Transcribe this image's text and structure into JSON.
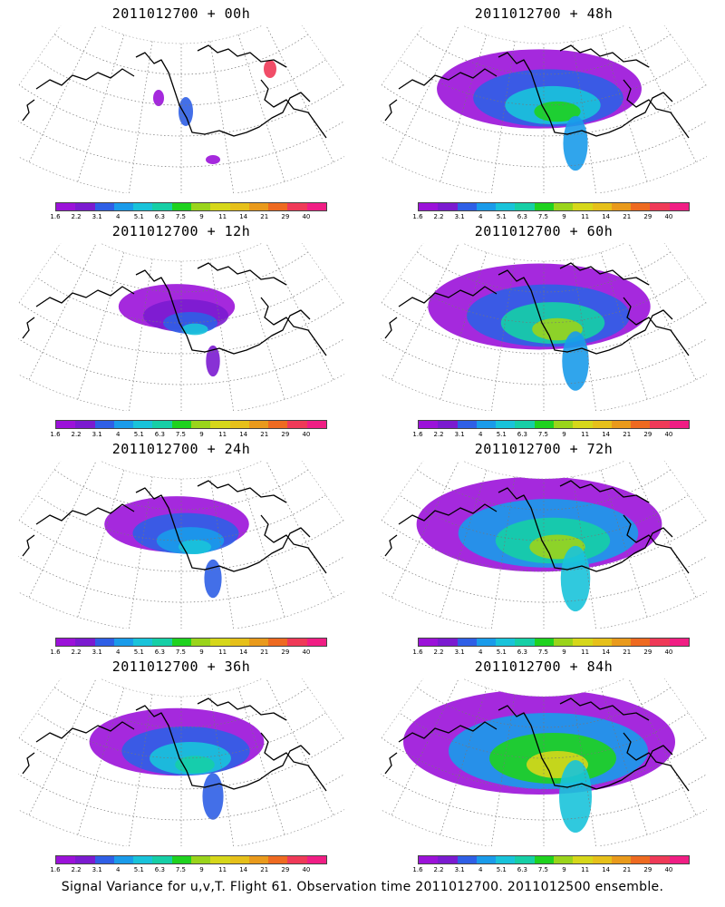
{
  "colorbar": {
    "colors": [
      "#9b12d9",
      "#7b1bd0",
      "#2f5fe6",
      "#1a9bea",
      "#19c3da",
      "#16cfa6",
      "#1fd21f",
      "#9ad41b",
      "#d6d71a",
      "#e6c01a",
      "#e99a1c",
      "#ee6a21",
      "#ef3a58",
      "#f01e84"
    ],
    "tick_labels": [
      "1.6",
      "2.2",
      "3.1",
      "4",
      "5.1",
      "6.3",
      "7.5",
      "9",
      "11",
      "14",
      "21",
      "29",
      "40"
    ]
  },
  "panels": [
    {
      "title": "2011012700 + 00h",
      "intensity": 0.0
    },
    {
      "title": "2011012700 + 48h",
      "intensity": 0.62
    },
    {
      "title": "2011012700 + 12h",
      "intensity": 0.12
    },
    {
      "title": "2011012700 + 60h",
      "intensity": 0.72
    },
    {
      "title": "2011012700 + 24h",
      "intensity": 0.28
    },
    {
      "title": "2011012700 + 72h",
      "intensity": 0.85
    },
    {
      "title": "2011012700 + 36h",
      "intensity": 0.45
    },
    {
      "title": "2011012700 + 84h",
      "intensity": 1.0
    }
  ],
  "caption": "Signal Variance for u,v,T. Flight 61. Observation time 2011012700. 2011012500 ensemble."
}
